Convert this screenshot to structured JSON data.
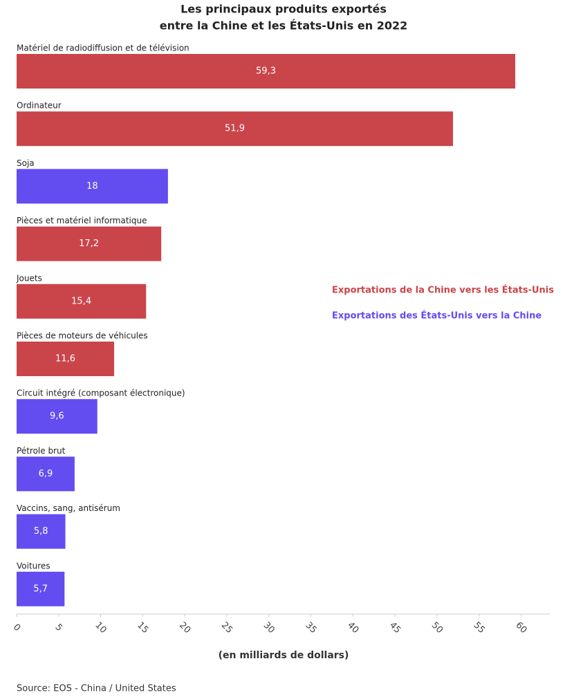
{
  "chart_data": {
    "type": "hbar",
    "title": [
      "Les principaux produits exportés",
      "entre la Chine et les États-Unis en 2022"
    ],
    "categories": [
      "Matériel de radiodiffusion et de télévision",
      "Ordinateur",
      "Soja",
      "Pièces et matériel informatique",
      "Jouets",
      "Pièces de moteurs de véhicules",
      "Circuit intégré (composant électronique)",
      "Pétrole brut",
      "Vaccins, sang, antisérum",
      "Voitures"
    ],
    "series": [
      {
        "name": "Exportations de la Chine vers les États-Unis",
        "color": "#c9454a",
        "values": [
          59.3,
          51.9,
          null,
          17.2,
          15.4,
          11.6,
          null,
          null,
          null,
          null
        ],
        "value_labels": [
          "59,3",
          "51,9",
          null,
          "17,2",
          "15,4",
          "11,6",
          null,
          null,
          null,
          null
        ]
      },
      {
        "name": "Exportations des États-Unis vers la Chine",
        "color": "#634cf0",
        "values": [
          null,
          null,
          18,
          null,
          null,
          null,
          9.6,
          6.9,
          5.8,
          5.7
        ],
        "value_labels": [
          null,
          null,
          "18",
          null,
          null,
          null,
          "9,6",
          "6,9",
          "5,8",
          "5,7"
        ]
      }
    ],
    "xlim": [
      0,
      63
    ],
    "xticks": [
      0,
      5,
      10,
      15,
      20,
      25,
      30,
      35,
      40,
      45,
      50,
      55,
      60
    ],
    "xlabel": "(en milliards de dollars)",
    "source": "Source: EOS - China / United States",
    "grid": false
  }
}
